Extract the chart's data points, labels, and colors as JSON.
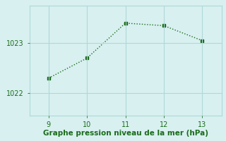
{
  "x": [
    9,
    10,
    11,
    12,
    13
  ],
  "y": [
    1022.3,
    1022.7,
    1023.4,
    1023.35,
    1023.05
  ],
  "line_color": "#1a6b1a",
  "marker": "s",
  "marker_size": 2.5,
  "bg_color": "#d8f0f0",
  "grid_color": "#b0d8d8",
  "xlabel": "Graphe pression niveau de la mer (hPa)",
  "xlabel_color": "#1a6b1a",
  "xlabel_fontsize": 7.5,
  "ytick_labels": [
    "1022",
    "1023"
  ],
  "ytick_values": [
    1022,
    1023
  ],
  "xtick_values": [
    9,
    10,
    11,
    12,
    13
  ],
  "xlim": [
    8.5,
    13.5
  ],
  "ylim": [
    1021.55,
    1023.75
  ],
  "tick_color": "#1a6b1a",
  "tick_fontsize": 7
}
